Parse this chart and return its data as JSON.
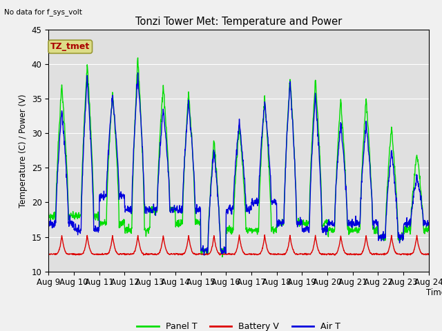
{
  "title": "Tonzi Tower Met: Temperature and Power",
  "top_left_text": "No data for f_sys_volt",
  "ylabel": "Temperature (C) / Power (V)",
  "xlabel": "Time",
  "ylim": [
    10,
    45
  ],
  "x_tick_labels": [
    "Aug 9",
    "Aug 10",
    "Aug 11",
    "Aug 12",
    "Aug 13",
    "Aug 14",
    "Aug 15",
    "Aug 16",
    "Aug 17",
    "Aug 18",
    "Aug 19",
    "Aug 20",
    "Aug 21",
    "Aug 22",
    "Aug 23",
    "Aug 24"
  ],
  "legend_labels": [
    "Panel T",
    "Battery V",
    "Air T"
  ],
  "panel_color": "#00dd00",
  "battery_color": "#dd0000",
  "air_color": "#0000dd",
  "annotation_text": "TZ_tmet",
  "annotation_box_color": "#dddd88",
  "annotation_text_color": "#aa0000",
  "plot_bg_color": "#e0e0e0",
  "fig_bg_color": "#f0f0f0",
  "grid_color": "#ffffff",
  "panel_peaks": [
    37,
    40,
    36,
    41,
    37,
    36,
    29,
    31,
    35,
    38,
    38,
    35,
    35,
    31,
    27
  ],
  "panel_troughs": [
    18,
    18,
    17,
    16,
    19,
    17,
    13,
    16,
    16,
    17,
    17,
    16,
    16,
    15,
    16
  ],
  "air_peaks": [
    34,
    39,
    36,
    39,
    34,
    35,
    28,
    32,
    35,
    38,
    36,
    32,
    32,
    28,
    24
  ],
  "air_troughs": [
    17,
    16,
    21,
    19,
    19,
    19,
    13,
    19,
    20,
    17,
    16,
    17,
    17,
    15,
    17
  ],
  "battery_base": 12.5,
  "battery_spike": 15.2,
  "pts_per_day": 100,
  "num_days": 15
}
